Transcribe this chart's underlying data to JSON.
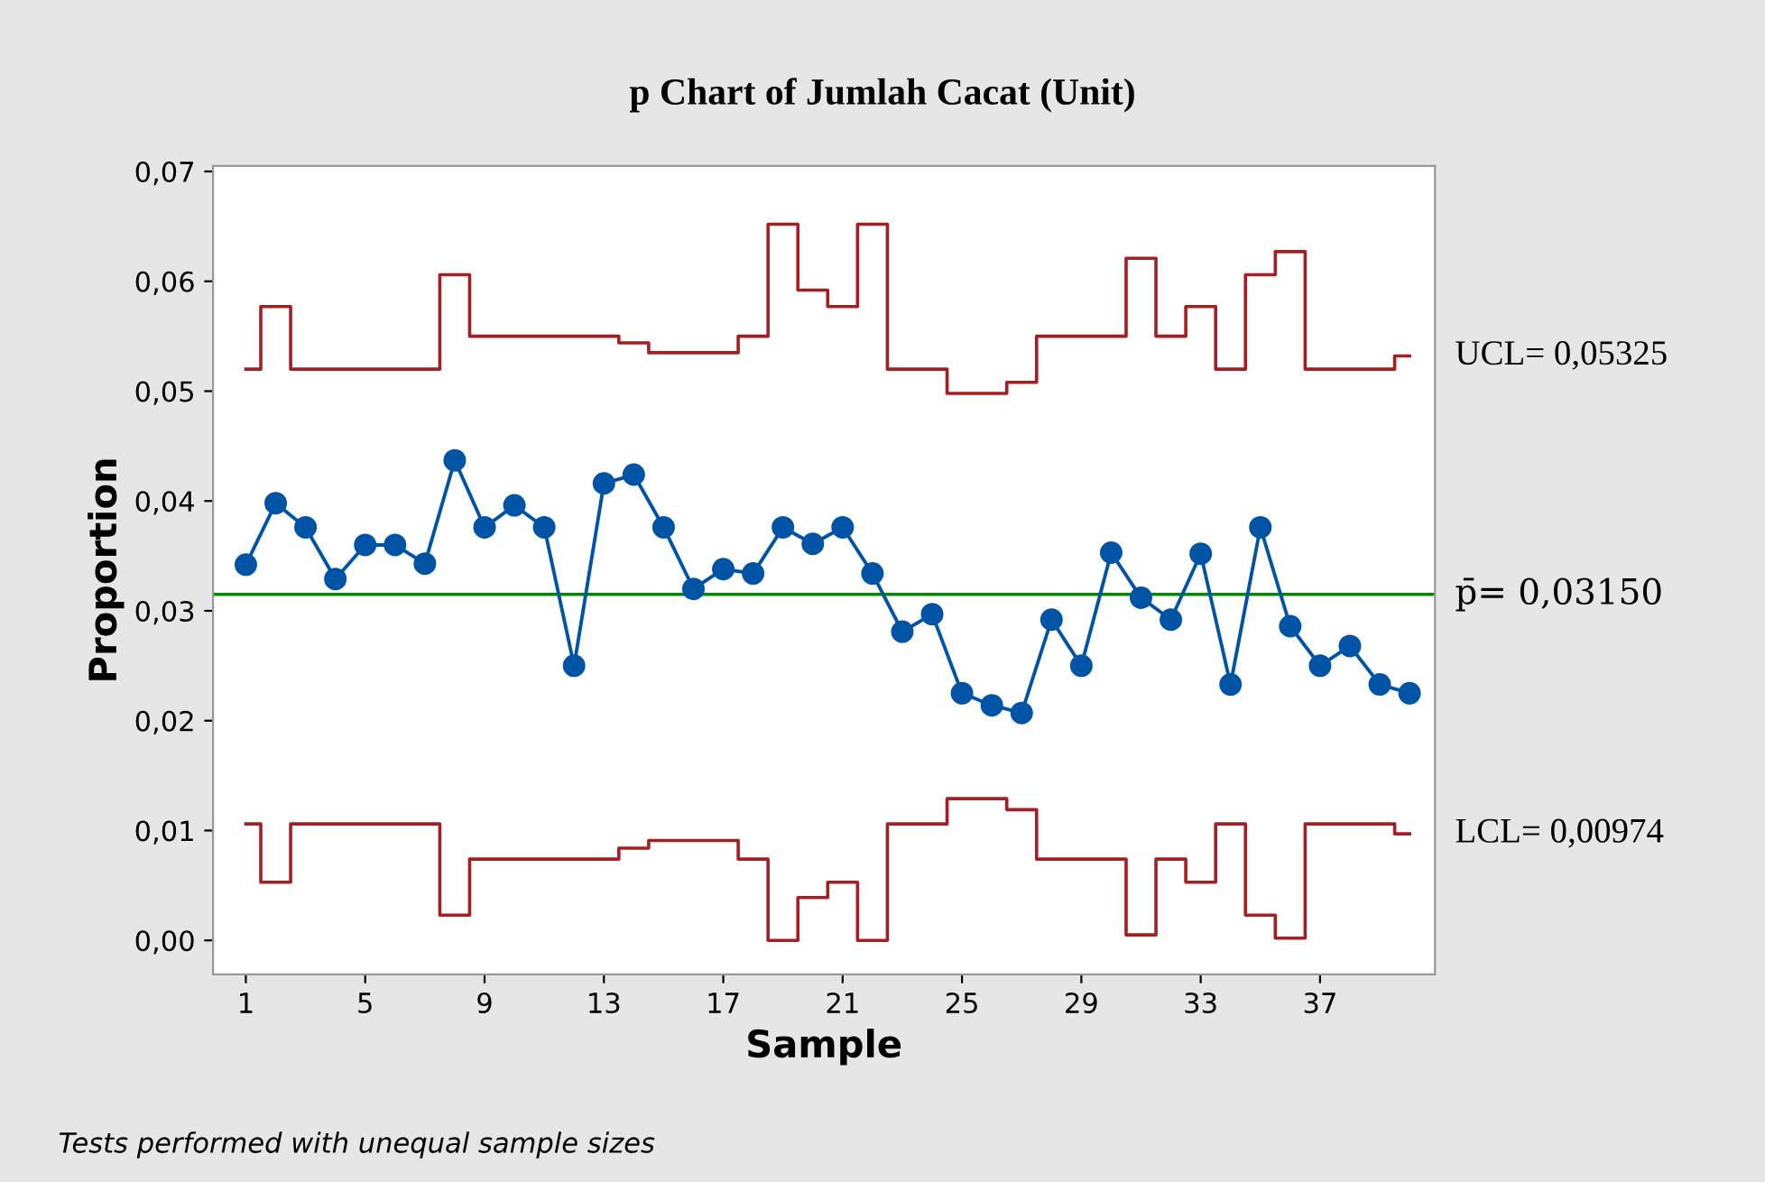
{
  "chart_data": {
    "type": "line",
    "title": "p Chart of Jumlah Cacat (Unit)",
    "xlabel": "Sample",
    "ylabel": "Proportion",
    "x": [
      1,
      2,
      3,
      4,
      5,
      6,
      7,
      8,
      9,
      10,
      11,
      12,
      13,
      14,
      15,
      16,
      17,
      18,
      19,
      20,
      21,
      22,
      23,
      24,
      25,
      26,
      27,
      28,
      29,
      30,
      31,
      32,
      33,
      34,
      35,
      36,
      37,
      38,
      39,
      40
    ],
    "series": [
      {
        "marker": "circle",
        "color": "#0054a6",
        "values": [
          0.0342,
          0.0398,
          0.0376,
          0.0329,
          0.036,
          0.036,
          0.0343,
          0.0437,
          0.0376,
          0.0396,
          0.0376,
          0.025,
          0.0416,
          0.0424,
          0.0376,
          0.032,
          0.0338,
          0.0334,
          0.0376,
          0.0361,
          0.0376,
          0.0334,
          0.0281,
          0.0297,
          0.0225,
          0.0214,
          0.0207,
          0.0292,
          0.025,
          0.0353,
          0.0312,
          0.0292,
          0.0352,
          0.0233,
          0.0376,
          0.0286,
          0.025,
          0.0268,
          0.0233,
          0.0225
        ]
      },
      {
        "type": "step",
        "marker": "none",
        "name": "UCL= 0,05325",
        "color": "#a31f24",
        "values": [
          0.052,
          0.0577,
          0.052,
          0.052,
          0.052,
          0.052,
          0.052,
          0.0606,
          0.055,
          0.055,
          0.055,
          0.055,
          0.055,
          0.0544,
          0.0535,
          0.0535,
          0.0535,
          0.055,
          0.0652,
          0.0592,
          0.0577,
          0.0652,
          0.052,
          0.052,
          0.0498,
          0.0498,
          0.0508,
          0.055,
          0.055,
          0.055,
          0.0621,
          0.055,
          0.0577,
          0.052,
          0.0606,
          0.0627,
          0.052,
          0.052,
          0.052,
          0.0532
        ]
      },
      {
        "type": "step",
        "marker": "none",
        "name": "LCL= 0,00974",
        "color": "#a31f24",
        "values": [
          0.0106,
          0.0053,
          0.0106,
          0.0106,
          0.0106,
          0.0106,
          0.0106,
          0.0023,
          0.0074,
          0.0074,
          0.0074,
          0.0074,
          0.0074,
          0.0084,
          0.0091,
          0.0091,
          0.0091,
          0.0074,
          0.0,
          0.0039,
          0.0053,
          0.0,
          0.0106,
          0.0106,
          0.0129,
          0.0129,
          0.0119,
          0.0074,
          0.0074,
          0.0074,
          0.0005,
          0.0074,
          0.0053,
          0.0106,
          0.0023,
          0.0002,
          0.0106,
          0.0106,
          0.0106,
          0.0097
        ]
      }
    ],
    "ref_lines": [
      {
        "axis": "y",
        "value": 0.0315,
        "label": "p̄= 0,03150",
        "color": "#008a00",
        "line_style": "solid"
      }
    ],
    "xlim": [
      -0.1,
      40.85
    ],
    "ylim": [
      -0.0031,
      0.0705
    ],
    "xticks": [
      1,
      5,
      9,
      13,
      17,
      21,
      25,
      29,
      33,
      37
    ],
    "yticks": [
      {
        "value": 0.0,
        "label": "0,00"
      },
      {
        "value": 0.01,
        "label": "0,01"
      },
      {
        "value": 0.02,
        "label": "0,02"
      },
      {
        "value": 0.03,
        "label": "0,03"
      },
      {
        "value": 0.04,
        "label": "0,04"
      },
      {
        "value": 0.05,
        "label": "0,05"
      },
      {
        "value": 0.06,
        "label": "0,06"
      },
      {
        "value": 0.07,
        "label": "0,07"
      }
    ],
    "line_style": "solid",
    "grid": false,
    "legend": false,
    "annotations": [
      "Tests performed with unequal sample sizes"
    ]
  }
}
